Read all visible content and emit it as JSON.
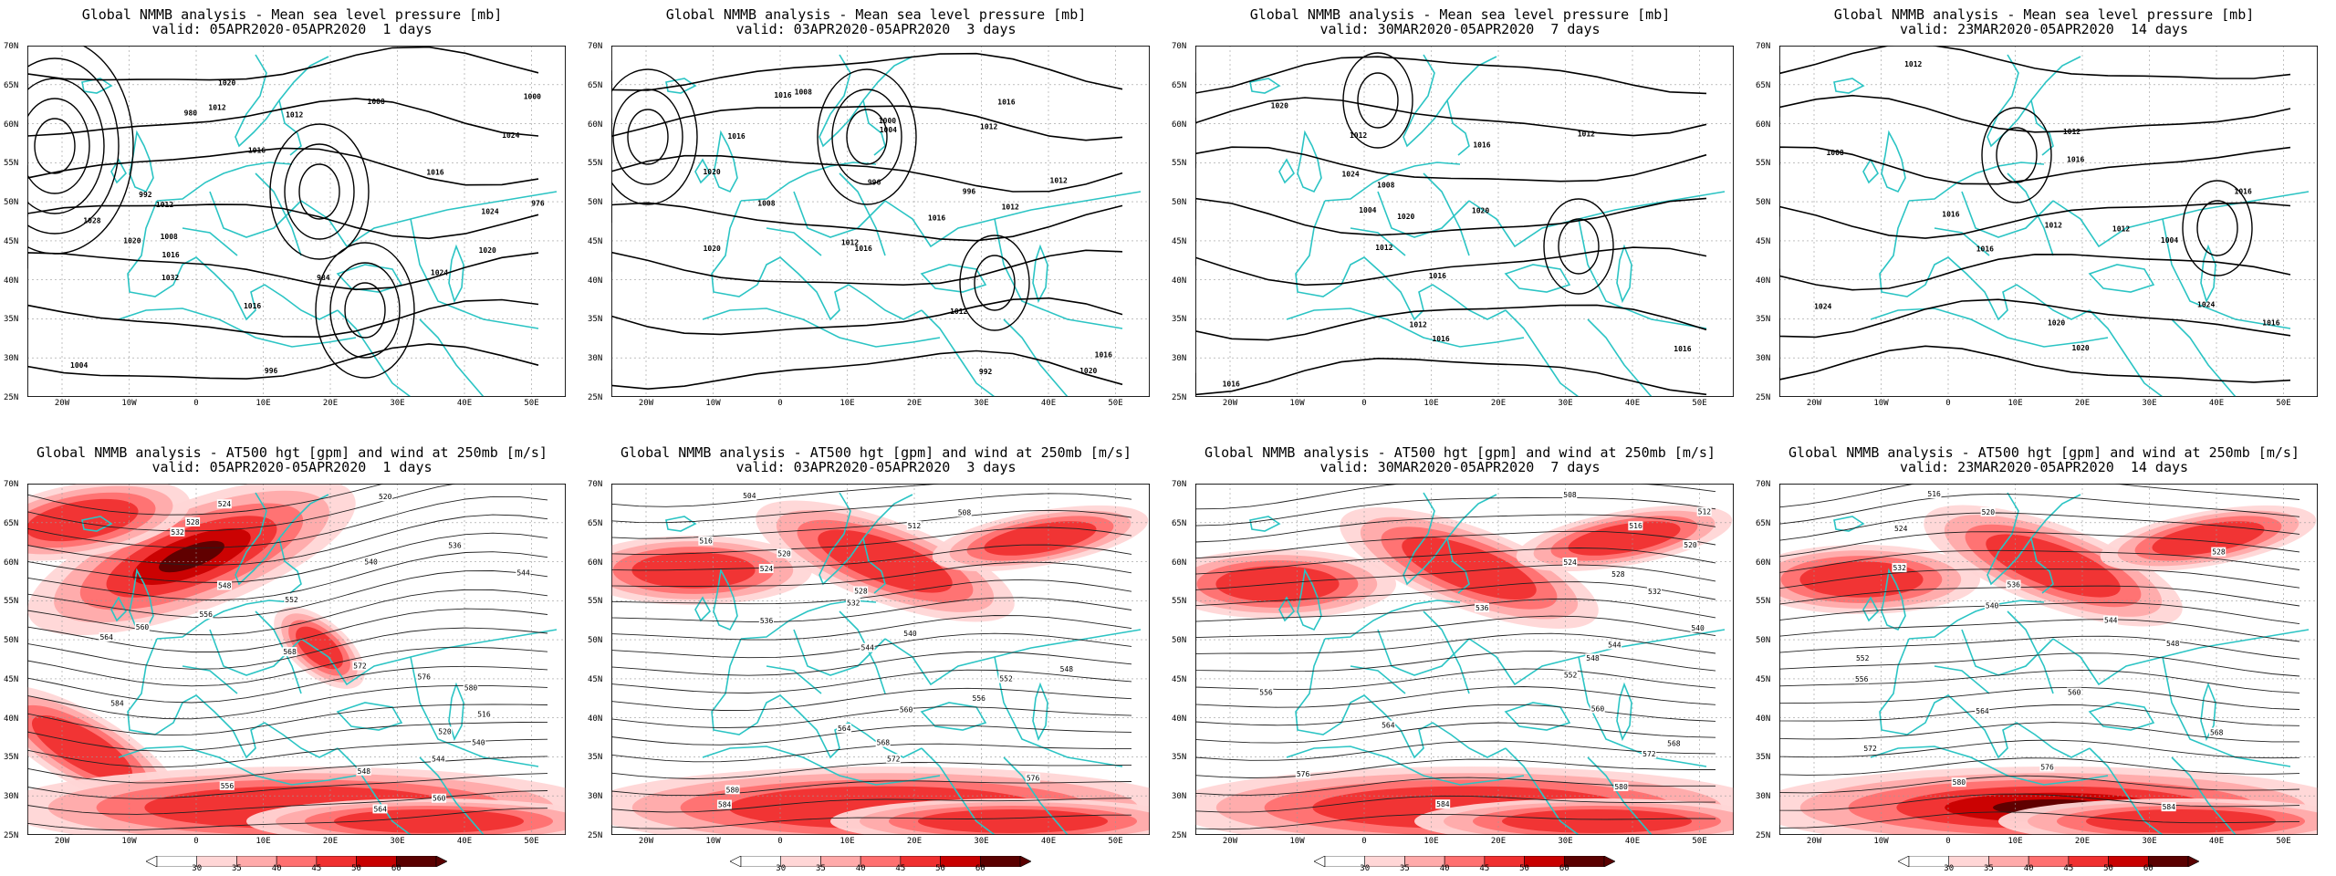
{
  "lat_labels": [
    "70N",
    "65N",
    "60N",
    "55N",
    "50N",
    "45N",
    "40N",
    "35N",
    "30N",
    "25N"
  ],
  "lon_labels": [
    "20W",
    "10W",
    "0",
    "10E",
    "20E",
    "30E",
    "40E",
    "50E"
  ],
  "colorbar_ticks": [
    "30",
    "35",
    "40",
    "45",
    "50",
    "60"
  ],
  "colors": {
    "coast": "#2bc4c4",
    "contour": "#000000",
    "grid": "#9a9a9a",
    "jet": [
      "#ffd6d6",
      "#ffaaaa",
      "#ff7070",
      "#f03030",
      "#c80000",
      "#5a0000"
    ]
  },
  "panels": [
    {
      "title": "Global NMMB analysis - Mean sea level pressure [mb]",
      "valid": "valid: 05APR2020-05APR2020  1 days",
      "kind": "mslp",
      "labels": [
        "1020",
        "1016",
        "1024",
        "1028",
        "1032",
        "1020",
        "1012",
        "1004",
        "1000",
        "996",
        "992",
        "984",
        "980",
        "976",
        "1008",
        "1012",
        "1016",
        "1020",
        "1024",
        "1024",
        "1016",
        "1016",
        "1008",
        "1012"
      ]
    },
    {
      "title": "Global NMMB analysis - Mean sea level pressure [mb]",
      "valid": "valid: 03APR2020-05APR2020  3 days",
      "kind": "mslp",
      "labels": [
        "1016",
        "1012",
        "1008",
        "1000",
        "996",
        "992",
        "1004",
        "1012",
        "1020",
        "1016",
        "1016",
        "1020",
        "1020",
        "1012",
        "1008",
        "1016",
        "1012",
        "1016",
        "1016",
        "1012",
        "996"
      ]
    },
    {
      "title": "Global NMMB analysis - Mean sea level pressure [mb]",
      "valid": "valid: 30MAR2020-05APR2020  7 days",
      "kind": "mslp",
      "labels": [
        "1008",
        "1004",
        "1012",
        "1016",
        "1020",
        "1024",
        "1016",
        "1020",
        "1012",
        "1016",
        "1012",
        "1012",
        "1016",
        "1020",
        "1016"
      ]
    },
    {
      "title": "Global NMMB analysis - Mean sea level pressure [mb]",
      "valid": "valid: 23MAR2020-05APR2020  14 days",
      "kind": "mslp",
      "labels": [
        "1008",
        "1004",
        "1012",
        "1016",
        "1020",
        "1024",
        "1016",
        "1024",
        "1020",
        "1016",
        "1012",
        "1012",
        "1016",
        "1016",
        "1012"
      ]
    },
    {
      "title": "Global NMMB analysis - AT500 hgt [gpm] and wind at 250mb [m/s]",
      "valid": "valid: 05APR2020-05APR2020  1 days",
      "kind": "z500",
      "labels": [
        "520",
        "524",
        "528",
        "532",
        "536",
        "540",
        "544",
        "548",
        "552",
        "556",
        "560",
        "564",
        "568",
        "572",
        "576",
        "580",
        "584",
        "516",
        "520",
        "540",
        "544",
        "548",
        "556",
        "560",
        "564"
      ]
    },
    {
      "title": "Global NMMB analysis - AT500 hgt [gpm] and wind at 250mb [m/s]",
      "valid": "valid: 03APR2020-05APR2020  3 days",
      "kind": "z500",
      "labels": [
        "504",
        "508",
        "512",
        "516",
        "520",
        "524",
        "528",
        "532",
        "536",
        "540",
        "544",
        "548",
        "552",
        "556",
        "560",
        "564",
        "568",
        "572",
        "576",
        "580",
        "584"
      ]
    },
    {
      "title": "Global NMMB analysis - AT500 hgt [gpm] and wind at 250mb [m/s]",
      "valid": "valid: 30MAR2020-05APR2020  7 days",
      "kind": "z500",
      "labels": [
        "508",
        "512",
        "516",
        "520",
        "524",
        "528",
        "532",
        "536",
        "540",
        "544",
        "548",
        "552",
        "556",
        "560",
        "564",
        "568",
        "572",
        "576",
        "580",
        "584"
      ]
    },
    {
      "title": "Global NMMB analysis - AT500 hgt [gpm] and wind at 250mb [m/s]",
      "valid": "valid: 23MAR2020-05APR2020  14 days",
      "kind": "z500",
      "labels": [
        "516",
        "520",
        "524",
        "528",
        "532",
        "536",
        "540",
        "544",
        "548",
        "552",
        "556",
        "560",
        "564",
        "568",
        "572",
        "576",
        "580",
        "584"
      ]
    }
  ]
}
